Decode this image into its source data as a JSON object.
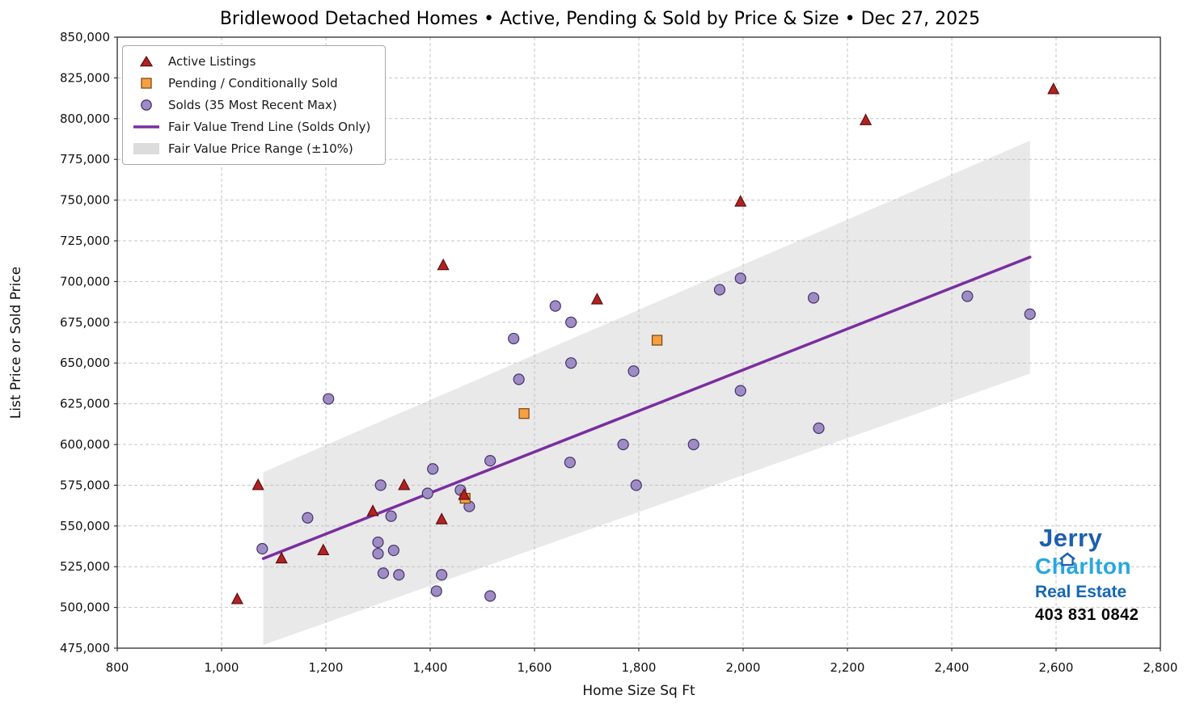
{
  "chart_data": {
    "type": "scatter",
    "title": "Bridlewood Detached Homes • Active, Pending & Sold by Price & Size • Dec 27, 2025",
    "xlabel": "Home Size Sq Ft",
    "ylabel": "List Price or Sold Price",
    "xlim": [
      800,
      2800
    ],
    "ylim": [
      475000,
      850000
    ],
    "grid": true,
    "legend_position": "upper left",
    "xticks": [
      800,
      1000,
      1200,
      1400,
      1600,
      1800,
      2000,
      2200,
      2400,
      2600,
      2800
    ],
    "xtick_labels": [
      "800",
      "1,000",
      "1,200",
      "1,400",
      "1,600",
      "1,800",
      "2,000",
      "2,200",
      "2,400",
      "2,600",
      "2,800"
    ],
    "yticks": [
      475000,
      500000,
      525000,
      550000,
      575000,
      600000,
      625000,
      650000,
      675000,
      700000,
      725000,
      750000,
      775000,
      800000,
      825000,
      850000
    ],
    "ytick_labels": [
      "475,000",
      "500,000",
      "525,000",
      "550,000",
      "575,000",
      "600,000",
      "625,000",
      "650,000",
      "675,000",
      "700,000",
      "725,000",
      "750,000",
      "775,000",
      "800,000",
      "825,000",
      "850,000"
    ],
    "series": [
      {
        "name": "Active Listings",
        "marker": "triangle",
        "color": "#b22222",
        "edge": "#5e0f0f",
        "points": [
          [
            1030,
            505000
          ],
          [
            1070,
            575000
          ],
          [
            1115,
            530000
          ],
          [
            1195,
            535000
          ],
          [
            1290,
            559000
          ],
          [
            1350,
            575000
          ],
          [
            1422,
            554000
          ],
          [
            1425,
            710000
          ],
          [
            1465,
            569000
          ],
          [
            1720,
            689000
          ],
          [
            1995,
            749000
          ],
          [
            2235,
            799000
          ],
          [
            2595,
            818000
          ]
        ]
      },
      {
        "name": "Pending / Conditionally Sold",
        "marker": "square",
        "color": "#f5a142",
        "edge": "#7d4b14",
        "points": [
          [
            1467,
            567000
          ],
          [
            1580,
            619000
          ],
          [
            1835,
            664000
          ]
        ]
      },
      {
        "name": "Solds (35 Most Recent Max)",
        "marker": "circle",
        "color": "#9e8cc4",
        "edge": "#46336b",
        "points": [
          [
            1078,
            536000
          ],
          [
            1165,
            555000
          ],
          [
            1205,
            628000
          ],
          [
            1300,
            540000
          ],
          [
            1300,
            533000
          ],
          [
            1310,
            521000
          ],
          [
            1340,
            520000
          ],
          [
            1330,
            535000
          ],
          [
            1305,
            575000
          ],
          [
            1325,
            556000
          ],
          [
            1395,
            570000
          ],
          [
            1405,
            585000
          ],
          [
            1412,
            510000
          ],
          [
            1422,
            520000
          ],
          [
            1458,
            572000
          ],
          [
            1475,
            562000
          ],
          [
            1515,
            590000
          ],
          [
            1515,
            507000
          ],
          [
            1560,
            665000
          ],
          [
            1570,
            640000
          ],
          [
            1640,
            685000
          ],
          [
            1670,
            675000
          ],
          [
            1670,
            650000
          ],
          [
            1668,
            589000
          ],
          [
            1770,
            600000
          ],
          [
            1790,
            645000
          ],
          [
            1795,
            575000
          ],
          [
            1905,
            600000
          ],
          [
            1955,
            695000
          ],
          [
            1995,
            702000
          ],
          [
            1995,
            633000
          ],
          [
            2135,
            690000
          ],
          [
            2145,
            610000
          ],
          [
            2430,
            691000
          ],
          [
            2550,
            680000
          ]
        ]
      }
    ],
    "trend_line": {
      "name": "Fair Value Trend Line (Solds Only)",
      "color": "#7a2ea0",
      "points": [
        [
          1080,
          530000
        ],
        [
          2550,
          715000
        ]
      ]
    },
    "band": {
      "name": "Fair Value Price Range (±10%)",
      "color": "#bfbfbf",
      "opacity": 0.35,
      "x": [
        1080,
        2550
      ],
      "upper": [
        583000,
        786500
      ],
      "lower": [
        477000,
        643500
      ]
    }
  },
  "logo": {
    "jerry": "Jerry",
    "charlton": "Charlton",
    "real_estate": "Real Estate",
    "phone": "403 831 0842"
  }
}
